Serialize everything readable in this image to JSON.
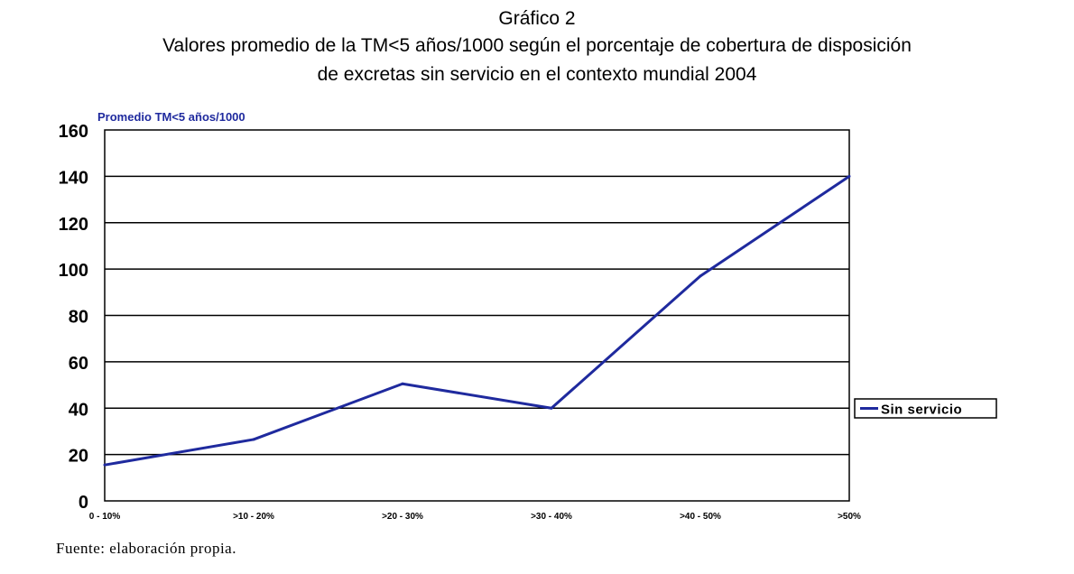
{
  "figure": {
    "label": "Gráfico 2",
    "title_line1": "Valores promedio de la TM<5 años/1000 según el porcentaje de cobertura de disposición",
    "title_line2": "de excretas sin servicio en el contexto mundial 2004",
    "source": "Fuente: elaboración propia."
  },
  "chart_data": {
    "type": "line",
    "title": "Valores promedio de la TM<5 años/1000 según el porcentaje de cobertura de disposición de excretas sin servicio en el contexto mundial 2004",
    "ylabel": "Promedio TM<5 años/1000",
    "xlabel": "",
    "categories": [
      "0 - 10%",
      ">10 - 20%",
      ">20 - 30%",
      ">30 - 40%",
      ">40 - 50%",
      ">50%"
    ],
    "series": [
      {
        "name": "Sin servicio",
        "values": [
          15.5,
          26.5,
          50.5,
          40,
          97,
          140
        ],
        "color": "#1f2a9e"
      }
    ],
    "ylim": [
      0,
      160
    ],
    "yticks": [
      "0",
      "20",
      "40",
      "60",
      "80",
      "100",
      "120",
      "140",
      "160"
    ],
    "ytick_values": [
      0,
      20,
      40,
      60,
      80,
      100,
      120,
      140,
      160
    ],
    "grid": true,
    "legend_position": "right"
  }
}
